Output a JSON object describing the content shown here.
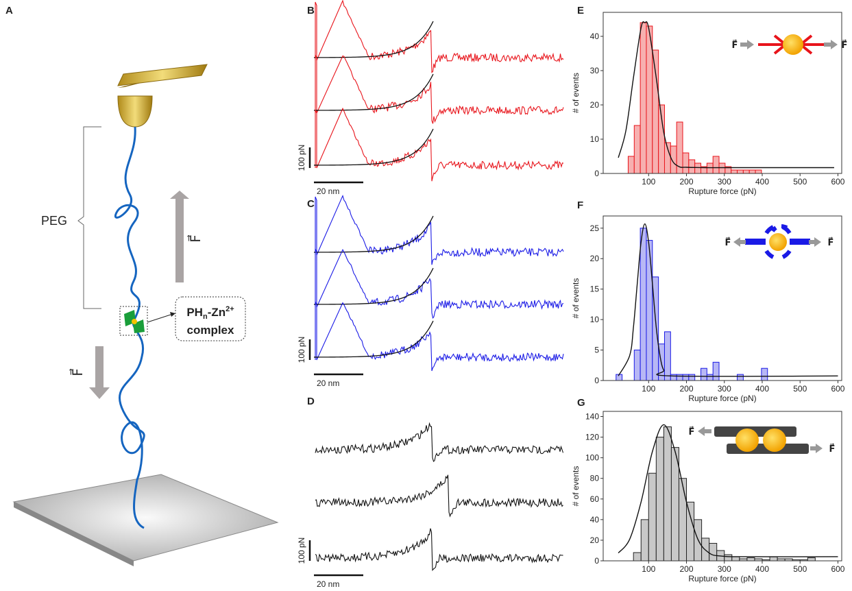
{
  "panel_labels": [
    "A",
    "B",
    "C",
    "D",
    "E",
    "F",
    "G"
  ],
  "schematic": {
    "peg": "PEG",
    "force": "F⃗",
    "complex": {
      "a": "PH",
      "sub": "n",
      "b": "-Zn",
      "sup": "2+",
      "c": "complex"
    }
  },
  "traces": [
    {
      "color": "#e8141b",
      "scale_y": "100 pN",
      "scale_x": "20 nm",
      "fit": true
    },
    {
      "color": "#1a1ae6",
      "scale_y": "100 pN",
      "scale_x": "20 nm",
      "fit": true
    },
    {
      "color": "#111111",
      "scale_y": "100 pN",
      "scale_x": "20 nm",
      "fit": false
    }
  ],
  "chart_data": [
    {
      "type": "histogram",
      "x_label": "Rupture force (pN)",
      "y_label": "# of events",
      "color": "#e8141b",
      "fill": "#f7b0b0",
      "annotations": [
        "F⃗",
        "F⃗"
      ],
      "bins": [
        46,
        62,
        78,
        94,
        110,
        126,
        142,
        158,
        174,
        190,
        206,
        222,
        238,
        254,
        270,
        286,
        302,
        318,
        334,
        350,
        366,
        382,
        398
      ],
      "values": [
        5,
        14,
        44,
        43,
        36,
        20,
        9,
        8,
        15,
        6,
        4,
        3,
        2,
        3,
        5,
        3,
        2,
        1,
        1,
        1,
        1,
        1
      ],
      "fit": {
        "x": [
          20,
          40,
          60,
          80,
          90,
          100,
          120,
          140,
          160,
          180,
          200,
          250,
          300,
          400,
          500,
          590
        ],
        "y": [
          4.6,
          12.5,
          28,
          42.5,
          44,
          42.5,
          28,
          12,
          4.3,
          2,
          1.8,
          1.7,
          1.7,
          1.7,
          1.7,
          1.7
        ]
      },
      "xlim": [
        -20,
        610
      ],
      "xticks": [
        100,
        200,
        300,
        400,
        500,
        600
      ],
      "ylim": [
        0,
        47
      ],
      "yticks": [
        0,
        10,
        20,
        30,
        40
      ]
    },
    {
      "type": "histogram",
      "x_label": "Rupture force (pN)",
      "y_label": "# of events",
      "color": "#1a1ae6",
      "fill": "#b8b8f5",
      "annotations": [
        "F⃗",
        "F⃗"
      ],
      "bins": [
        14,
        30,
        46,
        62,
        78,
        94,
        110,
        126,
        142,
        158,
        174,
        190,
        206,
        222,
        238,
        254,
        270,
        286,
        302,
        318,
        334,
        350,
        366,
        382,
        398,
        414
      ],
      "values": [
        1,
        0,
        0,
        5,
        25,
        23,
        17,
        6,
        8,
        1,
        1,
        1,
        1,
        0,
        2,
        1,
        3,
        0,
        0,
        0,
        1,
        0,
        0,
        0,
        2
      ],
      "fit": {
        "x": [
          20,
          50,
          60,
          70,
          80,
          90,
          100,
          110,
          120,
          130,
          140,
          160,
          600
        ],
        "y": [
          0.75,
          4.1,
          8.8,
          15.9,
          22.7,
          25.7,
          22.7,
          15.9,
          8.8,
          4.1,
          1.7,
          0.75,
          0.75
        ]
      },
      "xlim": [
        -20,
        610
      ],
      "xticks": [
        100,
        200,
        300,
        400,
        500,
        600
      ],
      "ylim": [
        0,
        27
      ],
      "yticks": [
        0,
        5,
        10,
        15,
        20,
        25
      ]
    },
    {
      "type": "histogram",
      "x_label": "Rupture force (pN)",
      "y_label": "# of events",
      "color": "#222222",
      "fill": "#c8c8c8",
      "annotations": [
        "F⃗",
        "F⃗"
      ],
      "bins": [
        60,
        80,
        100,
        120,
        140,
        160,
        180,
        200,
        220,
        240,
        260,
        280,
        300,
        320,
        340,
        360,
        380,
        400,
        420,
        440,
        460,
        480,
        500,
        520,
        540
      ],
      "values": [
        8,
        40,
        85,
        120,
        130,
        110,
        80,
        57,
        40,
        22,
        17,
        10,
        6,
        4,
        2,
        3,
        2,
        1,
        4,
        2,
        2,
        1,
        1,
        3
      ],
      "fit": {
        "x": [
          20,
          50,
          80,
          110,
          140,
          170,
          200,
          230,
          260,
          290,
          350,
          600
        ],
        "y": [
          7.6,
          21,
          57,
          106,
          132,
          106,
          57,
          21,
          7.6,
          4.7,
          4,
          4
        ]
      },
      "xlim": [
        -20,
        610
      ],
      "xticks": [
        100,
        200,
        300,
        400,
        500,
        600
      ],
      "ylim": [
        0,
        145
      ],
      "yticks": [
        0,
        20,
        40,
        60,
        80,
        100,
        120,
        140
      ]
    }
  ]
}
